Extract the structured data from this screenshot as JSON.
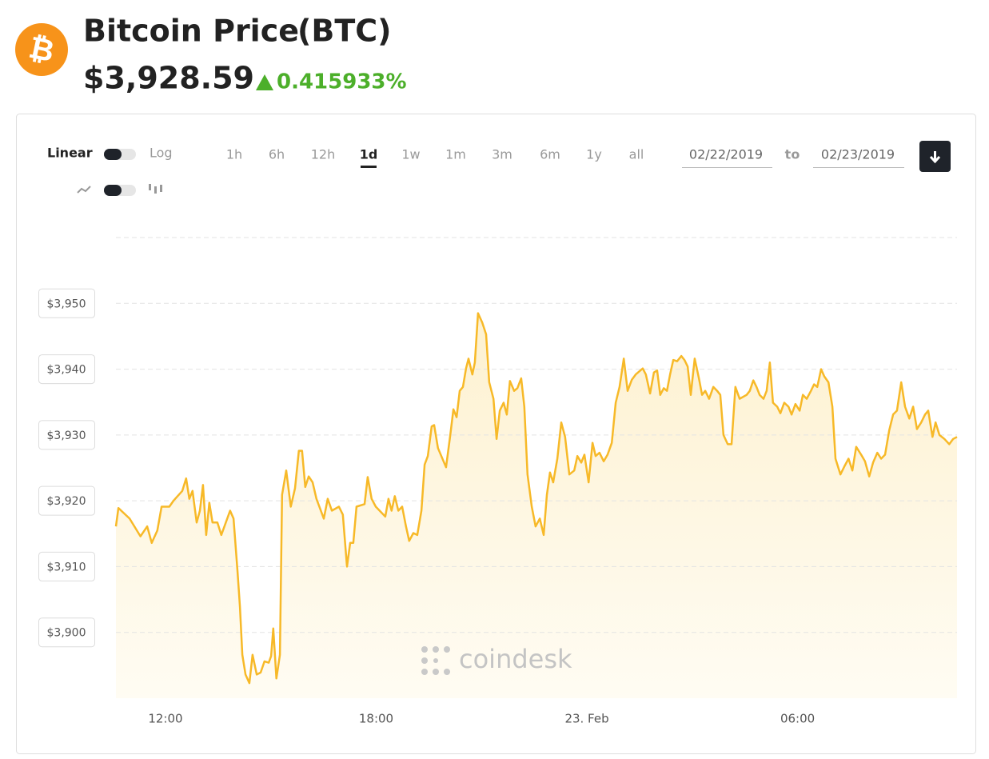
{
  "header": {
    "title": "Bitcoin Price",
    "symbol": "(BTC)",
    "price": "$3,928.59",
    "change": "0.415933%"
  },
  "controls": {
    "scales": [
      "Linear",
      "Log"
    ],
    "ranges": [
      "1h",
      "6h",
      "12h",
      "1d",
      "1w",
      "1m",
      "3m",
      "6m",
      "1y",
      "all"
    ],
    "active_range": 3,
    "date_from": "02/22/2019",
    "date_sep": "to",
    "date_to": "02/23/2019"
  },
  "chart_data": {
    "type": "line",
    "color": "#f7b928",
    "grid": true,
    "watermark": "coindesk",
    "x": [
      10.59,
      10.66,
      10.98,
      11.29,
      11.48,
      11.61,
      11.77,
      11.89,
      12.11,
      12.23,
      12.48,
      12.59,
      12.68,
      12.77,
      12.89,
      12.98,
      13.07,
      13.16,
      13.25,
      13.34,
      13.48,
      13.59,
      13.84,
      13.94,
      14.05,
      14.12,
      14.19,
      14.28,
      14.39,
      14.48,
      14.6,
      14.71,
      14.82,
      14.94,
      15.01,
      15.07,
      15.16,
      15.26,
      15.32,
      15.44,
      15.57,
      15.69,
      15.8,
      15.89,
      15.98,
      16.08,
      16.19,
      16.3,
      16.51,
      16.62,
      16.74,
      16.94,
      17.05,
      17.17,
      17.26,
      17.35,
      17.44,
      17.67,
      17.76,
      17.87,
      17.99,
      18.26,
      18.35,
      18.44,
      18.53,
      18.63,
      18.74,
      18.85,
      18.94,
      19.06,
      19.17,
      19.29,
      19.38,
      19.47,
      19.58,
      19.65,
      19.76,
      19.99,
      20.11,
      20.2,
      20.29,
      20.38,
      20.47,
      20.56,
      20.63,
      20.74,
      20.81,
      20.9,
      21.02,
      21.13,
      21.22,
      21.34,
      21.43,
      21.52,
      21.63,
      21.72,
      21.81,
      21.93,
      22.02,
      22.13,
      22.22,
      22.31,
      22.43,
      22.54,
      22.66,
      22.77,
      22.86,
      22.95,
      23.04,
      23.16,
      23.27,
      23.38,
      23.5,
      23.64,
      23.73,
      23.84,
      23.93,
      24.05,
      24.16,
      24.25,
      24.36,
      24.48,
      24.59,
      24.71,
      24.82,
      24.93,
      25.05,
      25.16,
      25.28,
      25.39,
      25.59,
      25.68,
      25.8,
      25.91,
      26.0,
      26.09,
      26.19,
      26.28,
      26.37,
      26.46,
      26.57,
      26.69,
      26.78,
      26.87,
      26.96,
      27.07,
      27.19,
      27.28,
      27.37,
      27.48,
      27.6,
      27.71,
      27.8,
      27.89,
      28.01,
      28.12,
      28.23,
      28.35,
      28.55,
      28.64,
      28.74,
      28.83,
      28.92,
      29.03,
      29.12,
      29.21,
      29.3,
      29.42,
      29.51,
      29.62,
      29.74,
      29.83,
      29.94,
      30.06,
      30.15,
      30.26,
      30.38,
      30.47,
      30.56,
      30.67,
      30.76,
      30.88,
      30.99,
      31.08,
      31.22,
      31.33,
      31.45,
      31.56,
      31.67,
      31.81,
      31.92,
      32.04,
      32.15,
      32.27,
      32.38,
      32.49,
      32.61,
      32.72,
      32.83,
      32.95,
      33.06,
      33.18,
      33.29,
      33.4,
      33.52,
      33.63,
      33.72,
      33.84,
      33.93,
      34.04,
      34.18,
      34.32,
      34.43,
      34.54
    ],
    "values": [
      3916.1,
      3918.9,
      3917.3,
      3914.6,
      3916.1,
      3913.6,
      3915.5,
      3919.1,
      3919.1,
      3920.0,
      3921.5,
      3923.4,
      3920.3,
      3921.5,
      3916.7,
      3918.5,
      3922.4,
      3914.8,
      3919.7,
      3916.7,
      3916.7,
      3914.8,
      3918.5,
      3917.3,
      3909.4,
      3903.9,
      3896.6,
      3893.6,
      3892.3,
      3896.6,
      3893.6,
      3893.9,
      3895.6,
      3895.4,
      3896.4,
      3900.6,
      3893.0,
      3896.6,
      3920.9,
      3924.6,
      3919.1,
      3921.9,
      3927.6,
      3927.6,
      3922.1,
      3923.7,
      3922.8,
      3920.3,
      3917.3,
      3920.3,
      3918.5,
      3919.1,
      3917.9,
      3910.0,
      3913.6,
      3913.6,
      3919.1,
      3919.5,
      3923.6,
      3920.3,
      3919.1,
      3917.6,
      3920.3,
      3918.5,
      3920.7,
      3918.5,
      3919.1,
      3916.1,
      3913.9,
      3915.1,
      3914.8,
      3918.5,
      3925.5,
      3926.8,
      3931.3,
      3931.5,
      3928.0,
      3925.1,
      3930.0,
      3933.9,
      3932.7,
      3936.7,
      3937.3,
      3940.1,
      3941.6,
      3939.2,
      3941.0,
      3948.5,
      3947.1,
      3945.3,
      3938.0,
      3935.5,
      3929.4,
      3933.7,
      3934.9,
      3933.1,
      3938.2,
      3936.7,
      3937.1,
      3938.6,
      3934.3,
      3924.0,
      3919.1,
      3916.1,
      3917.3,
      3914.8,
      3920.9,
      3924.3,
      3922.8,
      3926.4,
      3931.9,
      3929.7,
      3924.0,
      3924.6,
      3926.8,
      3925.8,
      3927.0,
      3922.8,
      3928.8,
      3926.8,
      3927.3,
      3926.0,
      3927.0,
      3928.8,
      3934.9,
      3937.3,
      3941.6,
      3936.7,
      3938.4,
      3939.2,
      3940.1,
      3939.2,
      3936.3,
      3939.5,
      3939.8,
      3936.1,
      3937.1,
      3936.7,
      3939.2,
      3941.4,
      3941.2,
      3942.0,
      3941.4,
      3940.4,
      3936.1,
      3941.6,
      3938.6,
      3936.1,
      3936.7,
      3935.5,
      3937.3,
      3936.7,
      3936.1,
      3930.0,
      3928.6,
      3928.6,
      3937.3,
      3935.5,
      3936.1,
      3936.7,
      3938.3,
      3937.3,
      3936.1,
      3935.5,
      3936.7,
      3941.0,
      3934.9,
      3934.3,
      3933.3,
      3934.9,
      3934.3,
      3933.1,
      3934.7,
      3933.7,
      3936.1,
      3935.5,
      3936.7,
      3937.7,
      3937.3,
      3940.0,
      3938.9,
      3938.0,
      3934.3,
      3926.4,
      3924.0,
      3925.2,
      3926.4,
      3924.6,
      3928.2,
      3927.0,
      3926.0,
      3923.7,
      3925.8,
      3927.3,
      3926.4,
      3927.0,
      3930.7,
      3933.1,
      3933.7,
      3938.0,
      3934.3,
      3932.5,
      3934.3,
      3930.9,
      3931.9,
      3933.1,
      3933.7,
      3929.7,
      3931.9,
      3930.0,
      3929.4,
      3928.6,
      3929.4,
      3929.7
    ],
    "xlim": [
      10.59,
      34.54
    ],
    "xticks": [
      {
        "value": 12,
        "label": "12:00"
      },
      {
        "value": 18,
        "label": "18:00"
      },
      {
        "value": 24,
        "label": "23. Feb"
      },
      {
        "value": 30,
        "label": "06:00"
      }
    ],
    "ylim": [
      3890,
      3960
    ],
    "yticks": [
      {
        "value": 3900,
        "label": "$3,900"
      },
      {
        "value": 3910,
        "label": "$3,910"
      },
      {
        "value": 3920,
        "label": "$3,920"
      },
      {
        "value": 3930,
        "label": "$3,930"
      },
      {
        "value": 3940,
        "label": "$3,940"
      },
      {
        "value": 3950,
        "label": "$3,950"
      }
    ]
  }
}
